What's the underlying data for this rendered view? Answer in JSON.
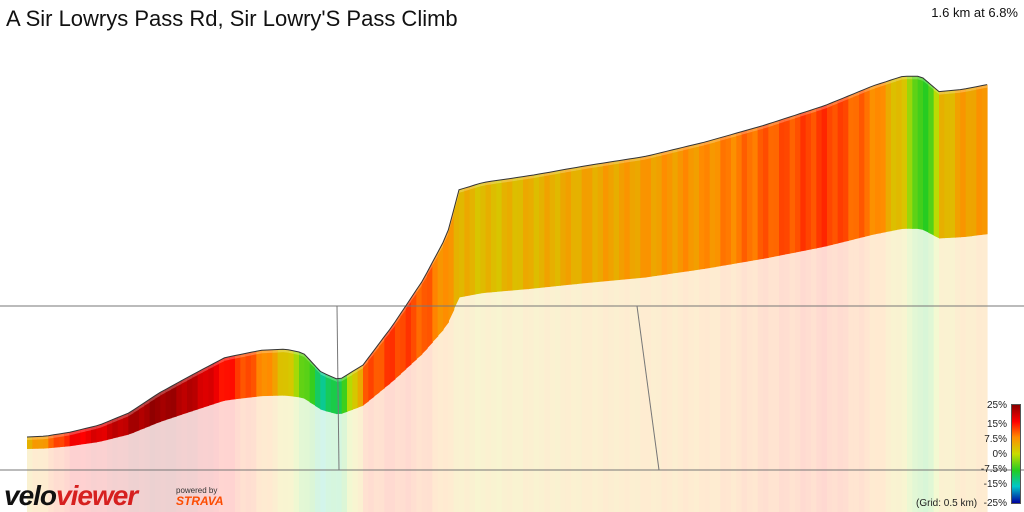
{
  "title": "A Sir Lowrys Pass Rd, Sir Lowry'S Pass Climb",
  "summary": "1.6 km at 6.8%",
  "legend": {
    "labels": [
      "25%",
      "15%",
      "7.5%",
      "0%",
      "-7.5%",
      "-15%",
      "-25%"
    ],
    "colors": [
      "#8b0000",
      "#ff0000",
      "#ff8c00",
      "#c8dc00",
      "#22cc22",
      "#00c8c8",
      "#0000a0"
    ],
    "grid_note": "(Grid: 0.5 km)"
  },
  "branding": {
    "logo_part1": "velo",
    "logo_part2": "viewer",
    "powered_by": "powered by",
    "strava": "STRAVA"
  },
  "chart_data": {
    "type": "area",
    "title": "A Sir Lowrys Pass Rd, Sir Lowry'S Pass Climb",
    "subtitle": "1.6 km at 6.8%",
    "xlabel": "",
    "ylabel": "",
    "x": [
      0,
      0.03,
      0.07,
      0.12,
      0.17,
      0.22,
      0.28,
      0.33,
      0.39,
      0.43,
      0.46,
      0.49,
      0.52,
      0.56,
      0.61,
      0.66,
      0.7,
      0.72,
      0.76,
      0.84,
      0.93,
      1.03,
      1.13,
      1.23,
      1.33,
      1.41,
      1.46,
      1.49,
      1.52,
      1.56,
      1.6
    ],
    "y": [
      0,
      0.2,
      1,
      2.5,
      5,
      9,
      13,
      16.2,
      17.7,
      18,
      17.3,
      13.5,
      12,
      15,
      23,
      32,
      41,
      50,
      51.5,
      53,
      55,
      57,
      60,
      63.5,
      67.5,
      71.5,
      73.5,
      73.5,
      70.5,
      71,
      72
    ],
    "gradient": [
      4,
      8,
      15,
      18,
      22,
      24,
      20,
      14,
      8,
      2,
      -5,
      -12,
      -8,
      10,
      12,
      10,
      6,
      4,
      3,
      4,
      5,
      6,
      7,
      10,
      12,
      8,
      1,
      -9,
      3,
      6,
      6
    ],
    "grid_x": [
      0.5,
      1.0
    ],
    "grid": true
  }
}
